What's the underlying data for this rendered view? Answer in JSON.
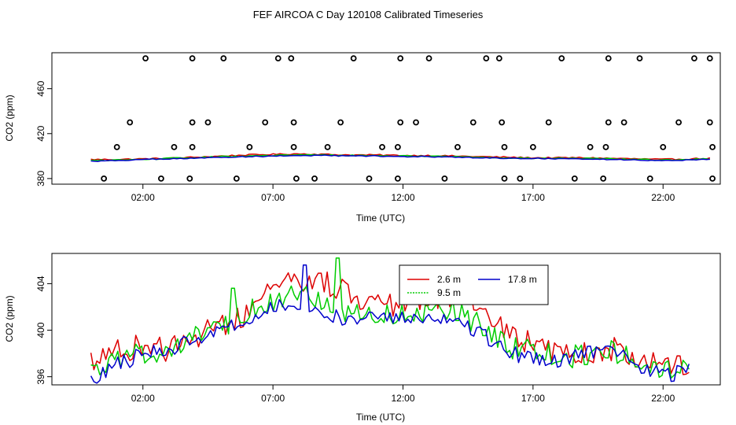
{
  "title": "FEF AIRCOA C  Day 120108  Calibrated Timeseries",
  "colors": {
    "red": "#dd0000",
    "green": "#00cc00",
    "blue": "#0000cc",
    "markers": "#000000"
  },
  "chart_data": [
    {
      "type": "scatter",
      "xlabel": "Time (UTC)",
      "ylabel": "CO2 (ppm)",
      "xlim": [
        -1.5,
        24.2
      ],
      "ylim": [
        375,
        492
      ],
      "xticks": [
        2,
        7,
        12,
        17,
        22
      ],
      "xtick_labels": [
        "02:00",
        "07:00",
        "12:00",
        "17:00",
        "22:00"
      ],
      "yticks": [
        380,
        420,
        460
      ],
      "ytick_labels": [
        "380",
        "420",
        "460"
      ],
      "series": [
        {
          "name": "2.6 m",
          "color": "red",
          "x": [
            0,
            1,
            2,
            3,
            4,
            5,
            6,
            7,
            8,
            9,
            10,
            11,
            12,
            13,
            14,
            15,
            16,
            17,
            18,
            19,
            20,
            21,
            22,
            23,
            23.8
          ],
          "y": [
            397,
            397,
            397.5,
            398,
            399,
            400,
            401,
            401.5,
            402,
            401.5,
            401,
            401,
            400.5,
            400.5,
            400,
            399.5,
            399,
            398.5,
            398.5,
            398.5,
            398,
            397.5,
            397,
            397.5,
            398
          ]
        },
        {
          "name": "9.5 m",
          "color": "green",
          "x": [
            0,
            1,
            2,
            3,
            4,
            5,
            6,
            7,
            8,
            9,
            10,
            11,
            12,
            13,
            14,
            15,
            16,
            17,
            18,
            19,
            20,
            21,
            22,
            23,
            23.8
          ],
          "y": [
            396,
            396.5,
            397,
            398,
            398.5,
            399.5,
            400,
            400.5,
            401,
            401,
            400.5,
            400.5,
            400,
            400,
            399.5,
            399,
            398.5,
            398,
            398,
            398,
            397.5,
            397,
            396.5,
            397,
            397.5
          ]
        },
        {
          "name": "17.8 m",
          "color": "blue",
          "x": [
            0,
            1,
            2,
            3,
            4,
            5,
            6,
            7,
            8,
            9,
            10,
            11,
            12,
            13,
            14,
            15,
            16,
            17,
            18,
            19,
            20,
            21,
            22,
            23,
            23.8
          ],
          "y": [
            395.5,
            396,
            397,
            397.5,
            398,
            399,
            399.5,
            400,
            400.5,
            400.5,
            400,
            400,
            399.5,
            399.5,
            399,
            398.5,
            398,
            398,
            397.5,
            397.5,
            397,
            396.5,
            396,
            396.5,
            397.5
          ]
        }
      ],
      "markers": [
        {
          "x": 0.5,
          "y": 380
        },
        {
          "x": 2.7,
          "y": 380
        },
        {
          "x": 3.8,
          "y": 380
        },
        {
          "x": 5.6,
          "y": 380
        },
        {
          "x": 7.9,
          "y": 380
        },
        {
          "x": 8.6,
          "y": 380
        },
        {
          "x": 10.7,
          "y": 380
        },
        {
          "x": 11.8,
          "y": 380
        },
        {
          "x": 13.6,
          "y": 380
        },
        {
          "x": 15.9,
          "y": 380
        },
        {
          "x": 16.5,
          "y": 380
        },
        {
          "x": 18.6,
          "y": 380
        },
        {
          "x": 19.7,
          "y": 380
        },
        {
          "x": 21.5,
          "y": 380
        },
        {
          "x": 23.9,
          "y": 380
        },
        {
          "x": 1.0,
          "y": 408
        },
        {
          "x": 3.2,
          "y": 408
        },
        {
          "x": 3.9,
          "y": 408
        },
        {
          "x": 6.1,
          "y": 408
        },
        {
          "x": 7.8,
          "y": 408
        },
        {
          "x": 9.1,
          "y": 408
        },
        {
          "x": 11.2,
          "y": 408
        },
        {
          "x": 11.8,
          "y": 408
        },
        {
          "x": 14.1,
          "y": 408
        },
        {
          "x": 15.9,
          "y": 408
        },
        {
          "x": 17.0,
          "y": 408
        },
        {
          "x": 19.2,
          "y": 408
        },
        {
          "x": 19.8,
          "y": 408
        },
        {
          "x": 22.0,
          "y": 408
        },
        {
          "x": 23.9,
          "y": 408
        },
        {
          "x": 1.5,
          "y": 430
        },
        {
          "x": 3.9,
          "y": 430
        },
        {
          "x": 4.5,
          "y": 430
        },
        {
          "x": 6.7,
          "y": 430
        },
        {
          "x": 7.8,
          "y": 430
        },
        {
          "x": 9.6,
          "y": 430
        },
        {
          "x": 11.9,
          "y": 430
        },
        {
          "x": 12.5,
          "y": 430
        },
        {
          "x": 14.7,
          "y": 430
        },
        {
          "x": 15.8,
          "y": 430
        },
        {
          "x": 17.6,
          "y": 430
        },
        {
          "x": 19.9,
          "y": 430
        },
        {
          "x": 20.5,
          "y": 430
        },
        {
          "x": 22.6,
          "y": 430
        },
        {
          "x": 23.8,
          "y": 430
        },
        {
          "x": 2.1,
          "y": 487
        },
        {
          "x": 3.9,
          "y": 487
        },
        {
          "x": 5.1,
          "y": 487
        },
        {
          "x": 7.2,
          "y": 487
        },
        {
          "x": 7.7,
          "y": 487
        },
        {
          "x": 10.1,
          "y": 487
        },
        {
          "x": 11.9,
          "y": 487
        },
        {
          "x": 13.0,
          "y": 487
        },
        {
          "x": 15.2,
          "y": 487
        },
        {
          "x": 15.7,
          "y": 487
        },
        {
          "x": 18.1,
          "y": 487
        },
        {
          "x": 19.9,
          "y": 487
        },
        {
          "x": 21.1,
          "y": 487
        },
        {
          "x": 23.2,
          "y": 487
        },
        {
          "x": 23.8,
          "y": 487
        }
      ]
    },
    {
      "type": "line",
      "xlabel": "Time (UTC)",
      "ylabel": "CO2 (ppm)",
      "xlim": [
        -1.5,
        24.2
      ],
      "ylim": [
        395.3,
        406.6
      ],
      "xticks": [
        2,
        7,
        12,
        17,
        22
      ],
      "xtick_labels": [
        "02:00",
        "07:00",
        "12:00",
        "17:00",
        "22:00"
      ],
      "yticks": [
        396,
        400,
        404
      ],
      "ytick_labels": [
        "396",
        "400",
        "404"
      ],
      "legend": {
        "position": "top-center",
        "entries": [
          "2.6 m",
          "9.5 m",
          "17.8 m"
        ]
      },
      "series": [
        {
          "name": "2.6 m",
          "color": "red",
          "x": [
            0,
            1,
            2,
            3,
            4,
            5,
            6,
            7,
            8,
            9,
            10,
            11,
            12,
            13,
            14,
            15,
            16,
            17,
            18,
            19,
            20,
            21,
            22,
            23
          ],
          "y": [
            397.5,
            398.3,
            398.6,
            398.2,
            399.5,
            400.2,
            401.6,
            403.3,
            404.3,
            404.0,
            403.1,
            402.3,
            402.2,
            402.5,
            403.0,
            402.0,
            399.8,
            398.7,
            398.3,
            398.2,
            398.4,
            397.8,
            396.6,
            397.3
          ]
        },
        {
          "name": "9.5 m",
          "color": "green",
          "x": [
            0,
            1,
            2,
            3,
            4,
            5,
            6,
            7,
            8,
            9,
            10,
            11,
            12,
            13,
            14,
            15,
            16,
            17,
            18,
            19,
            20,
            21,
            22,
            23
          ],
          "y": [
            396.5,
            397.3,
            398.1,
            398.2,
            399.3,
            400.1,
            401.7,
            402.6,
            402.9,
            402.5,
            401.5,
            401.3,
            401.4,
            401.6,
            401.7,
            400.3,
            398.7,
            398.3,
            397.6,
            397.9,
            398.3,
            397.4,
            396.4,
            396.7
          ]
        },
        {
          "name": "17.8 m",
          "color": "blue",
          "x": [
            0,
            1,
            2,
            3,
            4,
            5,
            6,
            7,
            8,
            9,
            10,
            11,
            12,
            13,
            14,
            15,
            16,
            17,
            18,
            19,
            20,
            21,
            22,
            23
          ],
          "y": [
            395.7,
            397.0,
            398.0,
            398.1,
            399.1,
            399.8,
            401.0,
            401.9,
            402.3,
            401.4,
            400.9,
            400.9,
            401.2,
            400.9,
            400.6,
            399.8,
            398.0,
            397.6,
            397.5,
            397.9,
            398.2,
            397.2,
            395.9,
            396.6
          ]
        }
      ]
    }
  ]
}
